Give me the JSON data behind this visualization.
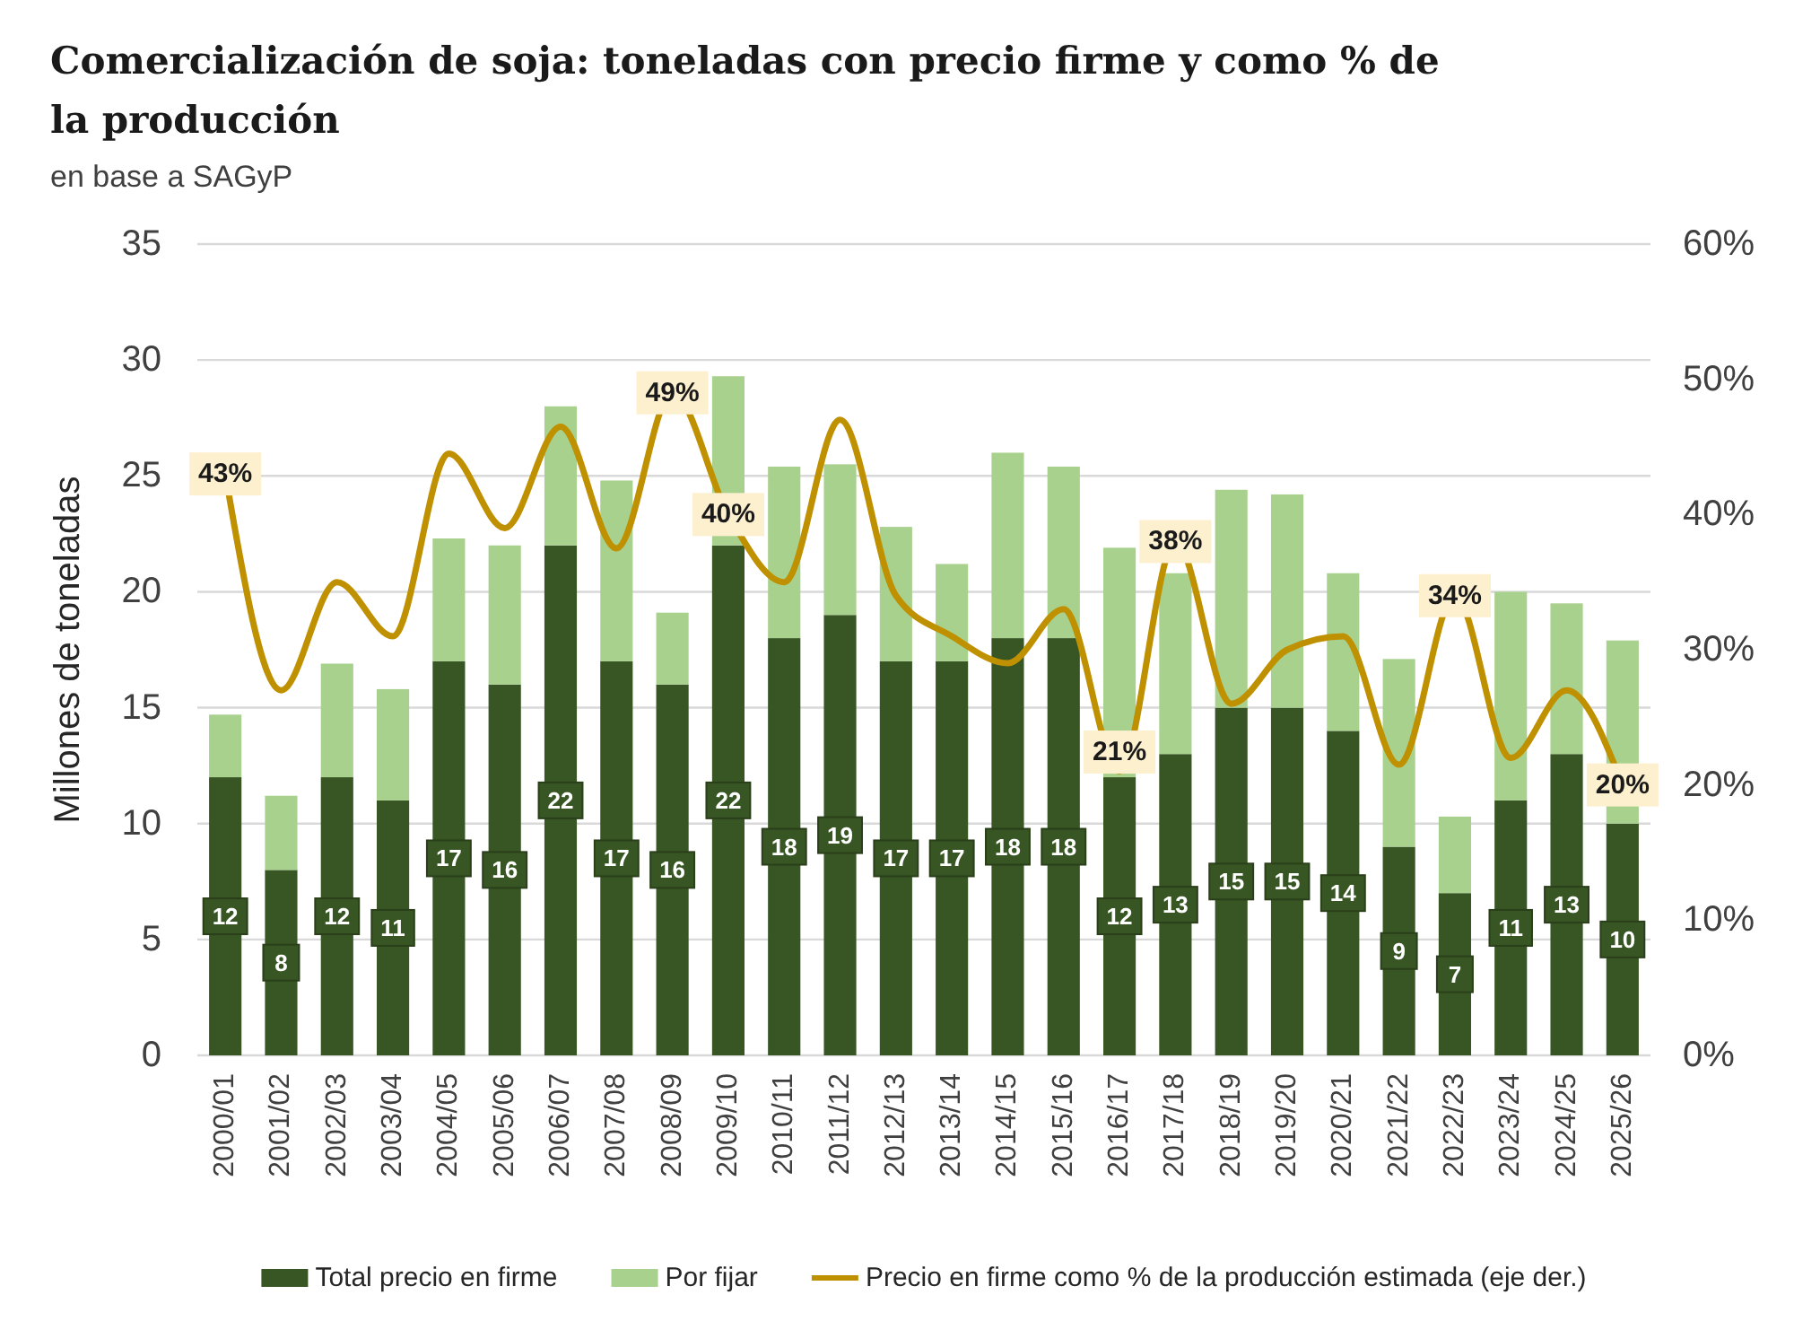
{
  "chart_data": {
    "type": "bar",
    "title": "Comercialización de soja: toneladas con precio firme y como % de la producción",
    "subtitle": "en base a SAGyP",
    "ylabel": "Millones de toneladas",
    "categories": [
      "2000/01",
      "2001/02",
      "2002/03",
      "2003/04",
      "2004/05",
      "2005/06",
      "2006/07",
      "2007/08",
      "2008/09",
      "2009/10",
      "2010/11",
      "2011/12",
      "2012/13",
      "2013/14",
      "2014/15",
      "2015/16",
      "2016/17",
      "2017/18",
      "2018/19",
      "2019/20",
      "2020/21",
      "2021/22",
      "2022/23",
      "2023/24",
      "2024/25",
      "2025/26"
    ],
    "stacked": true,
    "series": [
      {
        "name": "Total precio en firme",
        "color": "#375623",
        "values": [
          12,
          8,
          12,
          11,
          17,
          16,
          22,
          17,
          16,
          22,
          18,
          19,
          17,
          17,
          18,
          18,
          12,
          13,
          15,
          15,
          14,
          9,
          7,
          11,
          13,
          10
        ],
        "value_labels": [
          "12",
          "8",
          "12",
          "11",
          "17",
          "16",
          "22",
          "17",
          "16",
          "22",
          "18",
          "19",
          "17",
          "17",
          "18",
          "18",
          "12",
          "13",
          "15",
          "15",
          "14",
          "9",
          "7",
          "11",
          "13",
          "10"
        ]
      },
      {
        "name": "Por fijar",
        "color": "#a9d18e",
        "values": [
          2.7,
          3.2,
          4.9,
          4.8,
          5.3,
          6.0,
          6.0,
          7.8,
          3.1,
          7.3,
          7.4,
          6.5,
          5.8,
          4.2,
          8.0,
          7.4,
          9.9,
          7.8,
          9.4,
          9.2,
          6.8,
          8.1,
          3.3,
          9.0,
          6.5,
          7.9
        ]
      },
      {
        "name": "Precio en firme como % de la producción estimada (eje der.)",
        "type": "line",
        "axis": "y2",
        "color": "#bf9000",
        "values": [
          43,
          27,
          35,
          31,
          44.5,
          39,
          46.5,
          37.5,
          49,
          40,
          35,
          47,
          34,
          31,
          29,
          33,
          21,
          38,
          26,
          30,
          31,
          21.5,
          34,
          22,
          27,
          20
        ],
        "value_labels": [
          "43%",
          null,
          null,
          null,
          null,
          null,
          null,
          null,
          "49%",
          "40%",
          null,
          null,
          null,
          null,
          null,
          null,
          "21%",
          "38%",
          null,
          null,
          null,
          null,
          "34%",
          null,
          null,
          "20%"
        ]
      }
    ],
    "ylim": [
      0,
      35
    ],
    "yticks": [
      0,
      5,
      10,
      15,
      20,
      25,
      30,
      35
    ],
    "y2lim": [
      0,
      60
    ],
    "y2ticks": [
      {
        "value": 0,
        "label": "0%"
      },
      {
        "value": 10,
        "label": "10%"
      },
      {
        "value": 20,
        "label": "20%"
      },
      {
        "value": 30,
        "label": "30%"
      },
      {
        "value": 40,
        "label": "40%"
      },
      {
        "value": 50,
        "label": "50%"
      },
      {
        "value": 60,
        "label": "60%"
      }
    ],
    "grid": "y",
    "legend": "bottom"
  }
}
